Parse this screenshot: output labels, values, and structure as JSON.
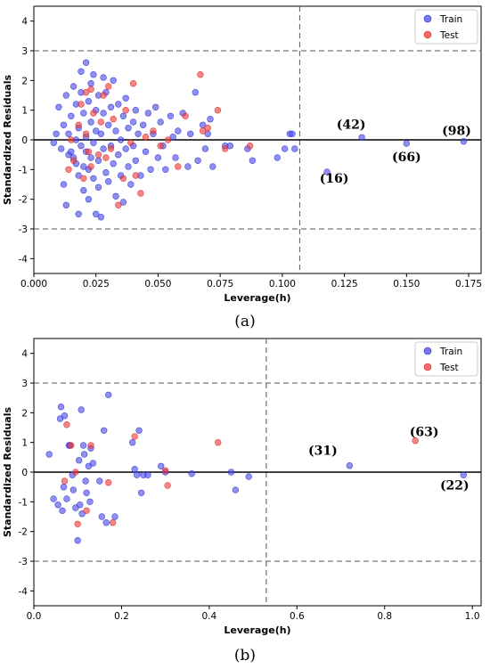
{
  "chart_data": [
    {
      "type": "scatter",
      "panel_label": "(a)",
      "xlabel": "Leverage(h)",
      "ylabel": "Standardized Residuals",
      "xlim": [
        0.0,
        0.18
      ],
      "ylim": [
        -4.5,
        4.5
      ],
      "xticks": [
        "0.000",
        "0.025",
        "0.050",
        "0.075",
        "0.100",
        "0.125",
        "0.150",
        "0.175"
      ],
      "yticks": [
        "-4",
        "-3",
        "-2",
        "-1",
        "0",
        "1",
        "2",
        "3",
        "4"
      ],
      "threshold_h": 0.107,
      "residual_limits": [
        3,
        -3
      ],
      "legend": [
        "Train",
        "Test"
      ],
      "legend_position": "top-right",
      "colors": {
        "train": "#4a4ae6",
        "test": "#ee3b3b"
      },
      "annotations": [
        {
          "label": "(42)",
          "x": 0.132,
          "y": 0.08
        },
        {
          "label": "(66)",
          "x": 0.15,
          "y": -0.12
        },
        {
          "label": "(98)",
          "x": 0.173,
          "y": -0.05
        },
        {
          "label": "(16)",
          "x": 0.118,
          "y": -1.08
        }
      ],
      "series": [
        {
          "name": "Train",
          "points": [
            [
              0.008,
              -0.1
            ],
            [
              0.009,
              0.2
            ],
            [
              0.01,
              1.1
            ],
            [
              0.011,
              -0.3
            ],
            [
              0.012,
              0.5
            ],
            [
              0.012,
              -1.5
            ],
            [
              0.013,
              1.5
            ],
            [
              0.013,
              -2.2
            ],
            [
              0.014,
              0.2
            ],
            [
              0.014,
              -0.5
            ],
            [
              0.015,
              0.8
            ],
            [
              0.015,
              -0.4
            ],
            [
              0.016,
              1.8
            ],
            [
              0.016,
              -0.6
            ],
            [
              0.017,
              0.0
            ],
            [
              0.017,
              -0.8
            ],
            [
              0.017,
              1.2
            ],
            [
              0.018,
              -2.5
            ],
            [
              0.018,
              0.4
            ],
            [
              0.018,
              -1.2
            ],
            [
              0.019,
              1.6
            ],
            [
              0.019,
              -0.2
            ],
            [
              0.019,
              2.3
            ],
            [
              0.02,
              0.9
            ],
            [
              0.02,
              -0.9
            ],
            [
              0.02,
              -1.7
            ],
            [
              0.021,
              2.6
            ],
            [
              0.021,
              0.1
            ],
            [
              0.021,
              -0.4
            ],
            [
              0.022,
              1.3
            ],
            [
              0.022,
              -1.0
            ],
            [
              0.022,
              -2.0
            ],
            [
              0.023,
              0.6
            ],
            [
              0.023,
              -0.6
            ],
            [
              0.023,
              1.9
            ],
            [
              0.024,
              2.2
            ],
            [
              0.024,
              -0.1
            ],
            [
              0.024,
              -1.3
            ],
            [
              0.025,
              0.3
            ],
            [
              0.025,
              -2.5
            ],
            [
              0.025,
              1.0
            ],
            [
              0.026,
              -0.7
            ],
            [
              0.026,
              1.5
            ],
            [
              0.026,
              -1.6
            ],
            [
              0.027,
              0.2
            ],
            [
              0.027,
              -2.6
            ],
            [
              0.028,
              0.9
            ],
            [
              0.028,
              -0.3
            ],
            [
              0.028,
              2.1
            ],
            [
              0.029,
              -1.1
            ],
            [
              0.029,
              1.6
            ],
            [
              0.03,
              0.5
            ],
            [
              0.03,
              -1.4
            ],
            [
              0.031,
              -0.2
            ],
            [
              0.031,
              1.1
            ],
            [
              0.032,
              -0.8
            ],
            [
              0.032,
              2.0
            ],
            [
              0.033,
              0.3
            ],
            [
              0.033,
              -1.9
            ],
            [
              0.034,
              -0.5
            ],
            [
              0.034,
              1.2
            ],
            [
              0.035,
              0.0
            ],
            [
              0.035,
              -1.2
            ],
            [
              0.036,
              0.8
            ],
            [
              0.036,
              -2.1
            ],
            [
              0.037,
              -0.3
            ],
            [
              0.037,
              1.4
            ],
            [
              0.038,
              0.4
            ],
            [
              0.038,
              -0.9
            ],
            [
              0.039,
              -1.5
            ],
            [
              0.04,
              0.6
            ],
            [
              0.04,
              -0.2
            ],
            [
              0.041,
              1.0
            ],
            [
              0.041,
              -0.7
            ],
            [
              0.042,
              0.2
            ],
            [
              0.043,
              -1.2
            ],
            [
              0.044,
              0.5
            ],
            [
              0.045,
              -0.4
            ],
            [
              0.046,
              0.9
            ],
            [
              0.047,
              -1.0
            ],
            [
              0.048,
              0.2
            ],
            [
              0.049,
              1.1
            ],
            [
              0.05,
              -0.6
            ],
            [
              0.051,
              0.6
            ],
            [
              0.052,
              -0.2
            ],
            [
              0.053,
              -1.0
            ],
            [
              0.055,
              0.8
            ],
            [
              0.056,
              0.1
            ],
            [
              0.057,
              -0.6
            ],
            [
              0.058,
              0.3
            ],
            [
              0.06,
              0.9
            ],
            [
              0.062,
              -0.9
            ],
            [
              0.063,
              0.2
            ],
            [
              0.065,
              1.6
            ],
            [
              0.066,
              -0.7
            ],
            [
              0.068,
              0.5
            ],
            [
              0.069,
              -0.3
            ],
            [
              0.07,
              0.2
            ],
            [
              0.071,
              0.7
            ],
            [
              0.072,
              -0.9
            ],
            [
              0.077,
              -0.2
            ],
            [
              0.079,
              -0.2
            ],
            [
              0.086,
              -0.3
            ],
            [
              0.088,
              -0.7
            ],
            [
              0.098,
              -0.6
            ],
            [
              0.101,
              -0.3
            ],
            [
              0.103,
              0.2
            ],
            [
              0.104,
              0.2
            ],
            [
              0.105,
              -0.3
            ],
            [
              0.118,
              -1.08
            ],
            [
              0.132,
              0.08
            ],
            [
              0.15,
              -0.12
            ],
            [
              0.173,
              -0.05
            ]
          ]
        },
        {
          "name": "Test",
          "points": [
            [
              0.014,
              -1.0
            ],
            [
              0.015,
              0.0
            ],
            [
              0.016,
              -0.7
            ],
            [
              0.018,
              0.5
            ],
            [
              0.019,
              1.2
            ],
            [
              0.02,
              -1.3
            ],
            [
              0.021,
              0.2
            ],
            [
              0.021,
              1.6
            ],
            [
              0.022,
              -0.4
            ],
            [
              0.023,
              1.7
            ],
            [
              0.023,
              -0.9
            ],
            [
              0.024,
              0.9
            ],
            [
              0.026,
              -0.5
            ],
            [
              0.027,
              0.6
            ],
            [
              0.028,
              1.5
            ],
            [
              0.029,
              -0.6
            ],
            [
              0.03,
              1.8
            ],
            [
              0.031,
              -0.3
            ],
            [
              0.032,
              0.7
            ],
            [
              0.034,
              -2.2
            ],
            [
              0.036,
              -1.3
            ],
            [
              0.037,
              1.0
            ],
            [
              0.039,
              -0.1
            ],
            [
              0.04,
              1.9
            ],
            [
              0.041,
              -1.2
            ],
            [
              0.043,
              -1.8
            ],
            [
              0.045,
              0.1
            ],
            [
              0.048,
              0.3
            ],
            [
              0.051,
              -0.2
            ],
            [
              0.054,
              0.0
            ],
            [
              0.058,
              -0.9
            ],
            [
              0.061,
              0.8
            ],
            [
              0.067,
              2.2
            ],
            [
              0.068,
              0.3
            ],
            [
              0.07,
              0.4
            ],
            [
              0.074,
              1.0
            ],
            [
              0.077,
              -0.3
            ],
            [
              0.087,
              -0.2
            ]
          ]
        }
      ]
    },
    {
      "type": "scatter",
      "panel_label": "(b)",
      "xlabel": "Leverage(h)",
      "ylabel": "Standardized Residuals",
      "xlim": [
        0.0,
        1.02
      ],
      "ylim": [
        -4.5,
        4.5
      ],
      "xticks": [
        "0.0",
        "0.2",
        "0.4",
        "0.6",
        "0.8",
        "1.0"
      ],
      "yticks": [
        "-4",
        "-3",
        "-2",
        "-1",
        "0",
        "1",
        "2",
        "3",
        "4"
      ],
      "threshold_h": 0.53,
      "residual_limits": [
        3,
        -3
      ],
      "legend": [
        "Train",
        "Test"
      ],
      "legend_position": "top-right",
      "colors": {
        "train": "#4a4ae6",
        "test": "#ee3b3b"
      },
      "annotations": [
        {
          "label": "(31)",
          "x": 0.72,
          "y": 0.22
        },
        {
          "label": "(63)",
          "x": 0.87,
          "y": 1.06
        },
        {
          "label": "(22)",
          "x": 0.98,
          "y": -0.1
        }
      ],
      "series": [
        {
          "name": "Train",
          "points": [
            [
              0.035,
              0.6
            ],
            [
              0.045,
              -0.9
            ],
            [
              0.055,
              -1.1
            ],
            [
              0.06,
              1.8
            ],
            [
              0.062,
              2.2
            ],
            [
              0.065,
              -1.3
            ],
            [
              0.068,
              -0.5
            ],
            [
              0.07,
              1.9
            ],
            [
              0.075,
              -0.9
            ],
            [
              0.08,
              0.9
            ],
            [
              0.082,
              0.9
            ],
            [
              0.088,
              -0.1
            ],
            [
              0.09,
              -0.6
            ],
            [
              0.095,
              -1.2
            ],
            [
              0.1,
              -2.3
            ],
            [
              0.103,
              0.4
            ],
            [
              0.105,
              -1.1
            ],
            [
              0.108,
              2.1
            ],
            [
              0.11,
              -1.4
            ],
            [
              0.113,
              0.9
            ],
            [
              0.115,
              0.6
            ],
            [
              0.118,
              -0.3
            ],
            [
              0.12,
              -0.7
            ],
            [
              0.125,
              0.2
            ],
            [
              0.128,
              -1.0
            ],
            [
              0.13,
              0.8
            ],
            [
              0.135,
              0.3
            ],
            [
              0.15,
              -0.3
            ],
            [
              0.155,
              -1.5
            ],
            [
              0.16,
              1.4
            ],
            [
              0.165,
              -1.7
            ],
            [
              0.17,
              2.6
            ],
            [
              0.185,
              -1.5
            ],
            [
              0.225,
              1.0
            ],
            [
              0.23,
              0.1
            ],
            [
              0.235,
              -0.1
            ],
            [
              0.24,
              1.4
            ],
            [
              0.245,
              -0.7
            ],
            [
              0.25,
              -0.1
            ],
            [
              0.26,
              -0.1
            ],
            [
              0.29,
              0.2
            ],
            [
              0.3,
              0.0
            ],
            [
              0.36,
              -0.05
            ],
            [
              0.45,
              0.0
            ],
            [
              0.46,
              -0.6
            ],
            [
              0.49,
              -0.15
            ],
            [
              0.72,
              0.22
            ],
            [
              0.98,
              -0.1
            ]
          ]
        },
        {
          "name": "Test",
          "points": [
            [
              0.07,
              -0.3
            ],
            [
              0.075,
              1.6
            ],
            [
              0.085,
              0.9
            ],
            [
              0.095,
              0.0
            ],
            [
              0.1,
              -1.75
            ],
            [
              0.12,
              -1.3
            ],
            [
              0.13,
              0.9
            ],
            [
              0.17,
              -0.35
            ],
            [
              0.18,
              -1.7
            ],
            [
              0.23,
              1.2
            ],
            [
              0.3,
              0.05
            ],
            [
              0.305,
              -0.45
            ],
            [
              0.42,
              1.0
            ],
            [
              0.87,
              1.06
            ]
          ]
        }
      ]
    }
  ]
}
